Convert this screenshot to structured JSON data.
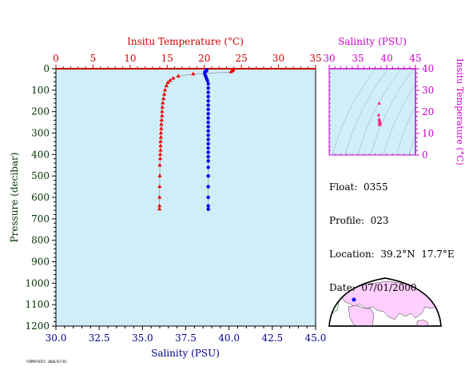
{
  "chart_data": [
    {
      "type": "scatter",
      "name_id": "main-profile",
      "title": "",
      "top_axis": {
        "label": "Insitu Temperature (°C)",
        "range": [
          0,
          35
        ],
        "ticks": [
          0,
          5,
          10,
          15,
          20,
          25,
          30,
          35
        ]
      },
      "bottom_axis": {
        "label": "Salinity (PSU)",
        "range": [
          30.0,
          45.0
        ],
        "ticks": [
          "30.0",
          "32.5",
          "35.0",
          "37.5",
          "40.0",
          "42.5",
          "45.0"
        ]
      },
      "left_axis": {
        "label": "Pressure (decibar)",
        "range": [
          0,
          1200
        ],
        "inverted": true,
        "ticks": [
          0,
          100,
          200,
          300,
          400,
          500,
          600,
          700,
          800,
          900,
          1000,
          1100,
          1200
        ]
      },
      "background": "#d0eef8",
      "series": [
        {
          "axis": "temperature",
          "color": "#ee0000",
          "marker": "triangle",
          "points": [
            [
              23.9,
              5
            ],
            [
              23.8,
              10
            ],
            [
              23.6,
              15
            ],
            [
              18.5,
              25
            ],
            [
              16.5,
              35
            ],
            [
              15.8,
              45
            ],
            [
              15.4,
              55
            ],
            [
              15.1,
              65
            ],
            [
              14.9,
              80
            ],
            [
              14.7,
              100
            ],
            [
              14.6,
              120
            ],
            [
              14.5,
              140
            ],
            [
              14.4,
              160
            ],
            [
              14.35,
              180
            ],
            [
              14.3,
              200
            ],
            [
              14.3,
              220
            ],
            [
              14.25,
              240
            ],
            [
              14.2,
              260
            ],
            [
              14.2,
              280
            ],
            [
              14.15,
              300
            ],
            [
              14.15,
              320
            ],
            [
              14.1,
              340
            ],
            [
              14.1,
              360
            ],
            [
              14.1,
              380
            ],
            [
              14.05,
              400
            ],
            [
              14.05,
              420
            ],
            [
              14.0,
              450
            ],
            [
              14.0,
              500
            ],
            [
              13.98,
              550
            ],
            [
              13.97,
              600
            ],
            [
              13.96,
              640
            ],
            [
              13.95,
              655
            ]
          ]
        },
        {
          "axis": "salinity",
          "color": "#0000ee",
          "marker": "circle",
          "points": [
            [
              38.7,
              5
            ],
            [
              38.7,
              10
            ],
            [
              38.6,
              15
            ],
            [
              38.6,
              25
            ],
            [
              38.65,
              35
            ],
            [
              38.7,
              45
            ],
            [
              38.75,
              55
            ],
            [
              38.8,
              70
            ],
            [
              38.8,
              90
            ],
            [
              38.8,
              110
            ],
            [
              38.8,
              130
            ],
            [
              38.8,
              150
            ],
            [
              38.8,
              170
            ],
            [
              38.8,
              190
            ],
            [
              38.8,
              210
            ],
            [
              38.8,
              230
            ],
            [
              38.8,
              250
            ],
            [
              38.8,
              270
            ],
            [
              38.8,
              290
            ],
            [
              38.8,
              310
            ],
            [
              38.8,
              330
            ],
            [
              38.8,
              350
            ],
            [
              38.8,
              370
            ],
            [
              38.8,
              390
            ],
            [
              38.8,
              410
            ],
            [
              38.8,
              430
            ],
            [
              38.8,
              460
            ],
            [
              38.8,
              500
            ],
            [
              38.8,
              550
            ],
            [
              38.8,
              600
            ],
            [
              38.8,
              640
            ],
            [
              38.8,
              655
            ]
          ]
        }
      ]
    },
    {
      "type": "scatter",
      "name_id": "ts-diagram",
      "title": "",
      "top_axis": {
        "label": "Salinity (PSU)",
        "range": [
          30,
          45
        ],
        "ticks": [
          30,
          35,
          40,
          45
        ]
      },
      "right_axis": {
        "label": "Insitu Temperature (°C)",
        "range": [
          0,
          40
        ],
        "ticks": [
          0,
          10,
          20,
          30,
          40
        ]
      },
      "background": "#d0eef8",
      "series": [
        {
          "color": "#ff2288",
          "marker": "triangle",
          "points": [
            [
              38.7,
              23.9
            ],
            [
              38.6,
              18.5
            ],
            [
              38.7,
              16.5
            ],
            [
              38.75,
              15.8
            ],
            [
              38.8,
              15.4
            ],
            [
              38.8,
              15.1
            ],
            [
              38.8,
              14.9
            ],
            [
              38.8,
              14.7
            ],
            [
              38.8,
              14.5
            ],
            [
              38.8,
              14.3
            ],
            [
              38.8,
              14.2
            ],
            [
              38.8,
              14.1
            ],
            [
              38.8,
              14.0
            ]
          ]
        }
      ]
    }
  ],
  "info": {
    "float": "Float:  0355",
    "profile": "Profile:  023",
    "location": "Location:  39.2°N  17.7°E",
    "date": "Date:  07/01/2000"
  },
  "map": {
    "float_marker_color": "#0000ee",
    "land_color": "#ffcfff",
    "ocean_color": "#ffffff"
  },
  "footer_stamp": "FORMAT0355 2000/07/01",
  "colors": {
    "temperature": "#cc0000",
    "salinity_main": "#000088",
    "ts_axis": "#cc00cc",
    "pressure": "#003300",
    "grid_frame": "#000000"
  }
}
